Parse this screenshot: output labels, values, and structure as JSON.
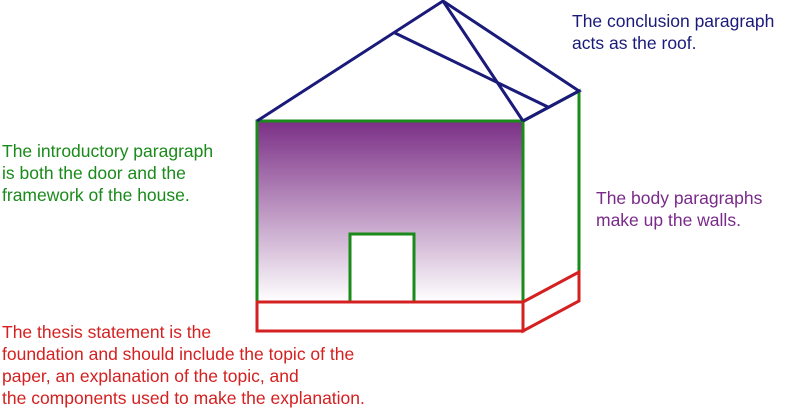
{
  "colors": {
    "roof": "#1a1a7a",
    "intro": "#1a8a1a",
    "body": "#7a2a8a",
    "thesis": "#d42020",
    "wall_gradient_top": "#7b2f86",
    "wall_gradient_bottom": "#ffffff"
  },
  "labels": {
    "roof": [
      "The conclusion paragraph",
      "acts as the roof."
    ],
    "intro": [
      "The introductory paragraph",
      "is both the door and the",
      "framework of the house."
    ],
    "body": [
      "The body paragraphs",
      "make up the walls."
    ],
    "thesis": [
      "The thesis statement is the",
      "foundation and should include the topic of the",
      "paper, an explanation of the topic, and",
      "the components used to make the explanation."
    ]
  }
}
